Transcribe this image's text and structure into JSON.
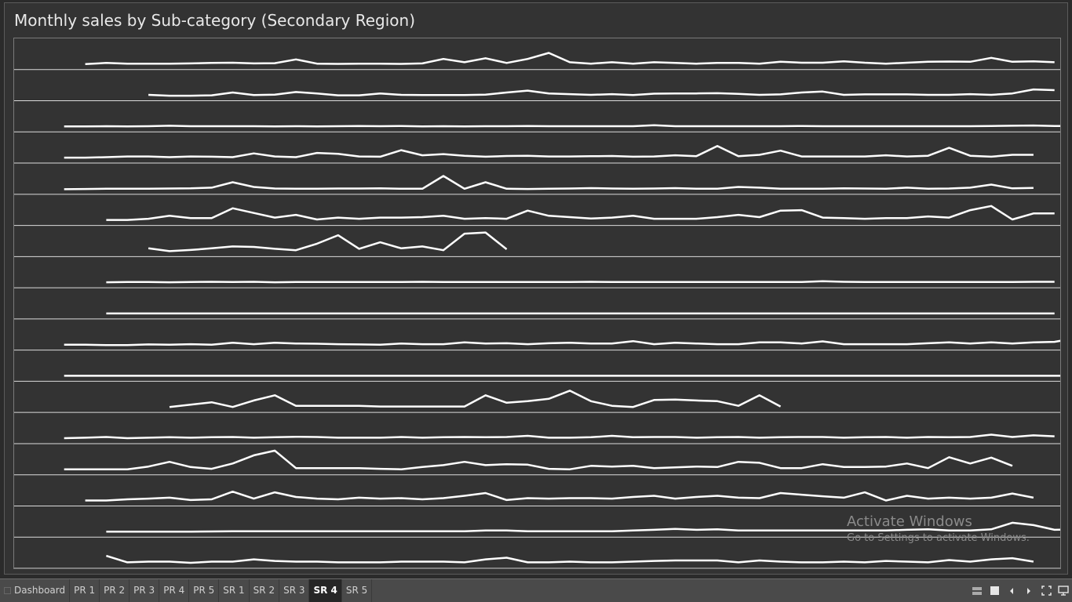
{
  "title": "Monthly sales by Sub-category (Secondary Region)",
  "watermark": {
    "line1": "Activate Windows",
    "line2": "Go to Settings to activate Windows."
  },
  "tabs": [
    "Dashboard",
    "PR 1",
    "PR 2",
    "PR 3",
    "PR 4",
    "PR 5",
    "SR 1",
    "SR 2",
    "SR 3",
    "SR 4",
    "SR 5"
  ],
  "active_tab": "SR 4",
  "colors": {
    "line": "#ffffff",
    "gridline": "#dcdcdc",
    "background": "#333333",
    "tabbar": "#4a4a4a"
  },
  "icons": [
    "grid-view-icon",
    "square-view-icon",
    "prev-arrow-icon",
    "next-arrow-icon",
    "fullscreen-icon",
    "present-icon"
  ],
  "chart_data": {
    "type": "line",
    "layout": "sparkline-rows",
    "num_months": 48,
    "row_scale": [
      0,
      1
    ],
    "grid": "row-separators",
    "series": [
      {
        "start": 3,
        "values": [
          0.1,
          0.15,
          0.12,
          0.12,
          0.12,
          0.13,
          0.15,
          0.16,
          0.13,
          0.14,
          0.3,
          0.12,
          0.11,
          0.12,
          0.12,
          0.11,
          0.13,
          0.32,
          0.18,
          0.35,
          0.15,
          0.32,
          0.58,
          0.18,
          0.12,
          0.18,
          0.12,
          0.18,
          0.15,
          0.12,
          0.15,
          0.15,
          0.12,
          0.2,
          0.16,
          0.16,
          0.22,
          0.16,
          0.12,
          0.16,
          0.2,
          0.21,
          0.2,
          0.37,
          0.2,
          0.22,
          0.18
        ]
      },
      {
        "start": 6,
        "values": [
          0.12,
          0.08,
          0.08,
          0.1,
          0.22,
          0.11,
          0.13,
          0.24,
          0.18,
          0.1,
          0.1,
          0.18,
          0.12,
          0.11,
          0.11,
          0.11,
          0.13,
          0.22,
          0.3,
          0.18,
          0.15,
          0.12,
          0.15,
          0.11,
          0.17,
          0.18,
          0.18,
          0.19,
          0.16,
          0.12,
          0.14,
          0.22,
          0.26,
          0.12,
          0.14,
          0.14,
          0.14,
          0.12,
          0.12,
          0.15,
          0.12,
          0.18,
          0.35,
          0.32
        ]
      },
      {
        "start": 2,
        "values": [
          0.1,
          0.1,
          0.11,
          0.1,
          0.11,
          0.13,
          0.11,
          0.11,
          0.11,
          0.11,
          0.1,
          0.11,
          0.1,
          0.11,
          0.12,
          0.11,
          0.12,
          0.1,
          0.11,
          0.1,
          0.11,
          0.11,
          0.12,
          0.11,
          0.11,
          0.11,
          0.11,
          0.11,
          0.15,
          0.11,
          0.11,
          0.11,
          0.11,
          0.11,
          0.11,
          0.12,
          0.11,
          0.11,
          0.11,
          0.11,
          0.11,
          0.11,
          0.11,
          0.11,
          0.12,
          0.13,
          0.14,
          0.12,
          0.12,
          0.14,
          0.12
        ]
      },
      {
        "start": 2,
        "values": [
          0.1,
          0.1,
          0.12,
          0.15,
          0.15,
          0.12,
          0.15,
          0.14,
          0.12,
          0.28,
          0.15,
          0.12,
          0.3,
          0.26,
          0.15,
          0.14,
          0.42,
          0.2,
          0.25,
          0.18,
          0.14,
          0.17,
          0.18,
          0.15,
          0.15,
          0.16,
          0.17,
          0.14,
          0.15,
          0.2,
          0.16,
          0.6,
          0.16,
          0.22,
          0.4,
          0.15,
          0.15,
          0.15,
          0.15,
          0.2,
          0.15,
          0.18,
          0.52,
          0.18,
          0.14,
          0.22,
          0.22
        ]
      },
      {
        "start": 2,
        "values": [
          0.08,
          0.09,
          0.1,
          0.1,
          0.1,
          0.11,
          0.12,
          0.15,
          0.38,
          0.18,
          0.11,
          0.1,
          0.1,
          0.11,
          0.11,
          0.12,
          0.1,
          0.1,
          0.65,
          0.1,
          0.38,
          0.1,
          0.09,
          0.1,
          0.11,
          0.13,
          0.11,
          0.1,
          0.11,
          0.13,
          0.1,
          0.1,
          0.18,
          0.15,
          0.1,
          0.1,
          0.1,
          0.12,
          0.11,
          0.1,
          0.15,
          0.1,
          0.11,
          0.15,
          0.28,
          0.12,
          0.14
        ]
      },
      {
        "start": 4,
        "values": [
          0.1,
          0.1,
          0.15,
          0.28,
          0.18,
          0.18,
          0.6,
          0.4,
          0.2,
          0.32,
          0.12,
          0.2,
          0.15,
          0.2,
          0.2,
          0.22,
          0.28,
          0.15,
          0.18,
          0.15,
          0.5,
          0.28,
          0.22,
          0.16,
          0.2,
          0.28,
          0.15,
          0.15,
          0.15,
          0.22,
          0.32,
          0.22,
          0.5,
          0.52,
          0.2,
          0.18,
          0.15,
          0.18,
          0.18,
          0.25,
          0.2,
          0.52,
          0.7,
          0.12,
          0.38,
          0.38
        ]
      },
      {
        "start": 6,
        "values": [
          0.22,
          0.1,
          0.15,
          0.22,
          0.3,
          0.28,
          0.2,
          0.14,
          0.42,
          0.78,
          0.2,
          0.48,
          0.22,
          0.3,
          0.14,
          0.85,
          0.9,
          0.18
        ]
      },
      {
        "start": 4,
        "values": [
          0.1,
          0.11,
          0.11,
          0.1,
          0.11,
          0.12,
          0.11,
          0.12,
          0.1,
          0.11,
          0.11,
          0.11,
          0.11,
          0.11,
          0.11,
          0.12,
          0.11,
          0.11,
          0.11,
          0.11,
          0.11,
          0.11,
          0.11,
          0.12,
          0.11,
          0.11,
          0.11,
          0.11,
          0.11,
          0.11,
          0.11,
          0.11,
          0.11,
          0.11,
          0.15,
          0.12,
          0.11,
          0.11,
          0.11,
          0.11,
          0.11,
          0.11,
          0.11,
          0.11,
          0.12,
          0.12
        ]
      },
      {
        "start": 4,
        "values": [
          0.1,
          0.1,
          0.1,
          0.1,
          0.1,
          0.1,
          0.1,
          0.1,
          0.1,
          0.1,
          0.1,
          0.1,
          0.1,
          0.1,
          0.1,
          0.1,
          0.1,
          0.1,
          0.1,
          0.1,
          0.1,
          0.1,
          0.1,
          0.1,
          0.1,
          0.1,
          0.1,
          0.1,
          0.1,
          0.1,
          0.1,
          0.1,
          0.1,
          0.1,
          0.1,
          0.1,
          0.1,
          0.1,
          0.1,
          0.1,
          0.1,
          0.1,
          0.1,
          0.1,
          0.1,
          0.1
        ]
      },
      {
        "start": 2,
        "values": [
          0.1,
          0.1,
          0.08,
          0.08,
          0.11,
          0.1,
          0.12,
          0.1,
          0.18,
          0.12,
          0.18,
          0.15,
          0.14,
          0.12,
          0.11,
          0.1,
          0.15,
          0.12,
          0.12,
          0.2,
          0.15,
          0.16,
          0.12,
          0.16,
          0.18,
          0.15,
          0.15,
          0.25,
          0.12,
          0.18,
          0.15,
          0.12,
          0.12,
          0.2,
          0.2,
          0.15,
          0.24,
          0.12,
          0.12,
          0.12,
          0.12,
          0.16,
          0.2,
          0.15,
          0.2,
          0.15,
          0.2,
          0.22,
          0.38,
          0.2
        ]
      },
      {
        "start": 2,
        "values": [
          0.1,
          0.1,
          0.1,
          0.1,
          0.1,
          0.1,
          0.1,
          0.1,
          0.1,
          0.1,
          0.1,
          0.1,
          0.1,
          0.1,
          0.1,
          0.1,
          0.1,
          0.1,
          0.1,
          0.1,
          0.1,
          0.1,
          0.1,
          0.1,
          0.1,
          0.1,
          0.1,
          0.1,
          0.1,
          0.1,
          0.1,
          0.1,
          0.1,
          0.1,
          0.1,
          0.1,
          0.1,
          0.1,
          0.1,
          0.1,
          0.1,
          0.1,
          0.1,
          0.1,
          0.1,
          0.1,
          0.1,
          0.1,
          0.1,
          0.1
        ]
      },
      {
        "start": 7,
        "values": [
          0.1,
          0.2,
          0.3,
          0.1,
          0.38,
          0.6,
          0.15,
          0.15,
          0.15,
          0.15,
          0.12,
          0.12,
          0.12,
          0.12,
          0.12,
          0.6,
          0.28,
          0.35,
          0.45,
          0.8,
          0.35,
          0.15,
          0.1,
          0.4,
          0.42,
          0.38,
          0.35,
          0.15,
          0.6,
          0.12
        ]
      },
      {
        "start": 2,
        "values": [
          0.1,
          0.12,
          0.15,
          0.1,
          0.12,
          0.14,
          0.12,
          0.14,
          0.15,
          0.12,
          0.14,
          0.16,
          0.15,
          0.12,
          0.12,
          0.12,
          0.15,
          0.12,
          0.14,
          0.15,
          0.14,
          0.15,
          0.2,
          0.12,
          0.12,
          0.14,
          0.2,
          0.14,
          0.15,
          0.15,
          0.12,
          0.14,
          0.15,
          0.12,
          0.14,
          0.15,
          0.15,
          0.12,
          0.14,
          0.15,
          0.12,
          0.15,
          0.14,
          0.15,
          0.25,
          0.15,
          0.22,
          0.18
        ]
      },
      {
        "start": 2,
        "values": [
          0.1,
          0.1,
          0.1,
          0.1,
          0.22,
          0.42,
          0.2,
          0.12,
          0.35,
          0.7,
          0.9,
          0.15,
          0.15,
          0.15,
          0.15,
          0.12,
          0.1,
          0.2,
          0.28,
          0.42,
          0.28,
          0.32,
          0.3,
          0.12,
          0.1,
          0.25,
          0.22,
          0.25,
          0.15,
          0.18,
          0.22,
          0.2,
          0.42,
          0.38,
          0.15,
          0.15,
          0.32,
          0.2,
          0.2,
          0.22,
          0.35,
          0.15,
          0.62,
          0.35,
          0.6,
          0.25
        ]
      },
      {
        "start": 3,
        "values": [
          0.1,
          0.1,
          0.15,
          0.18,
          0.22,
          0.12,
          0.15,
          0.48,
          0.18,
          0.45,
          0.25,
          0.18,
          0.15,
          0.22,
          0.18,
          0.2,
          0.15,
          0.2,
          0.3,
          0.42,
          0.12,
          0.2,
          0.18,
          0.2,
          0.2,
          0.18,
          0.25,
          0.3,
          0.18,
          0.25,
          0.3,
          0.22,
          0.2,
          0.42,
          0.35,
          0.28,
          0.22,
          0.45,
          0.1,
          0.3,
          0.18,
          0.22,
          0.18,
          0.22,
          0.4,
          0.22
        ]
      },
      {
        "start": 4,
        "values": [
          0.1,
          0.1,
          0.1,
          0.1,
          0.1,
          0.11,
          0.12,
          0.12,
          0.12,
          0.12,
          0.12,
          0.12,
          0.12,
          0.12,
          0.12,
          0.12,
          0.12,
          0.12,
          0.15,
          0.15,
          0.12,
          0.12,
          0.12,
          0.12,
          0.12,
          0.15,
          0.18,
          0.22,
          0.18,
          0.2,
          0.15,
          0.15,
          0.15,
          0.15,
          0.15,
          0.15,
          0.15,
          0.15,
          0.18,
          0.2,
          0.15,
          0.15,
          0.2,
          0.48,
          0.38,
          0.18,
          0.2
        ]
      },
      {
        "start": 4,
        "values": [
          0.4,
          0.12,
          0.15,
          0.15,
          0.1,
          0.15,
          0.15,
          0.25,
          0.18,
          0.15,
          0.15,
          0.12,
          0.12,
          0.12,
          0.15,
          0.15,
          0.15,
          0.12,
          0.25,
          0.32,
          0.12,
          0.12,
          0.15,
          0.12,
          0.12,
          0.15,
          0.18,
          0.2,
          0.2,
          0.2,
          0.12,
          0.2,
          0.15,
          0.12,
          0.12,
          0.15,
          0.12,
          0.18,
          0.15,
          0.12,
          0.22,
          0.15,
          0.25,
          0.3,
          0.15
        ]
      }
    ]
  }
}
